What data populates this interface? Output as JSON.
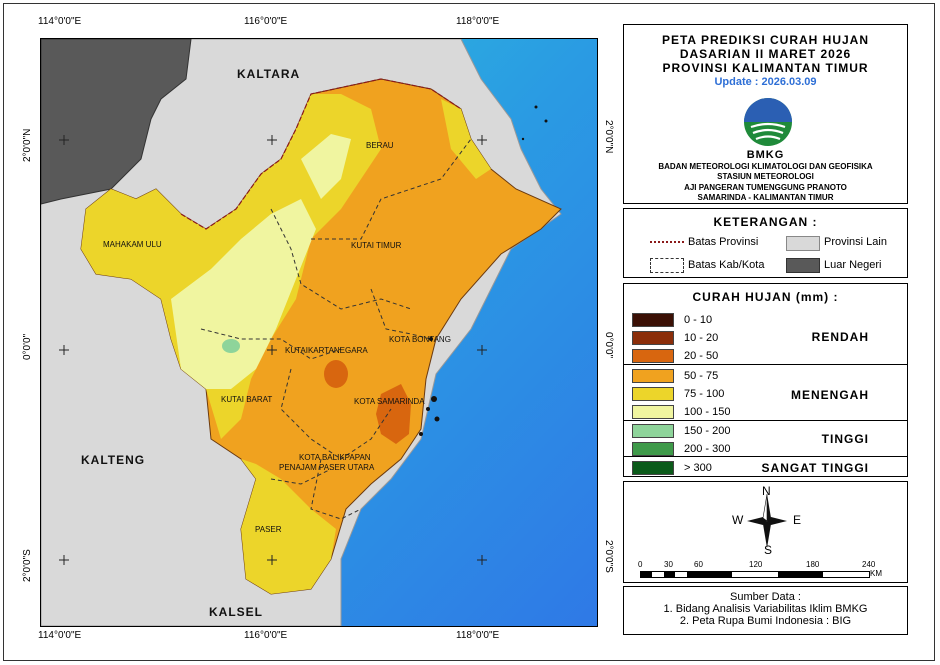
{
  "coordinates": {
    "top": [
      "114°0'0\"E",
      "116°0'0\"E",
      "118°0'0\"E"
    ],
    "bottom": [
      "114°0'0\"E",
      "116°0'0\"E",
      "118°0'0\"E"
    ],
    "left": [
      "2°0'0\"N",
      "0°0'0\"",
      "2°0'0\"S"
    ],
    "right": [
      "2°0'0\"N",
      "0°0'0\"",
      "2°0'0\"S"
    ]
  },
  "map": {
    "neighbors": [
      "KALTARA",
      "KALTENG",
      "KALSEL"
    ],
    "regencies": [
      "BERAU",
      "MAHAKAM ULU",
      "KUTAI TIMUR",
      "KUTAIKARTANEGARA",
      "KOTA BONTANG",
      "KUTAI BARAT",
      "KOTA SAMARINDA",
      "KOTA BALIKPAPAN",
      "PENAJAM PASER UTARA",
      "PASER"
    ]
  },
  "title": {
    "line1": "PETA PREDIKSI CURAH HUJAN",
    "line2": "DASARIAN II MARET 2026",
    "line3": "PROVINSI KALIMANTAN TIMUR",
    "update": "Update : 2026.03.09",
    "logo_text": "BMKG",
    "org1": "BADAN METEOROLOGI KLIMATOLOGI DAN GEOFISIKA",
    "org2": "STASIUN METEOROLOGI",
    "org3": "AJI PANGERAN TUMENGGUNG PRANOTO",
    "org4": "SAMARINDA - KALIMANTAN TIMUR"
  },
  "keterangan": {
    "heading": "KETERANGAN :",
    "batas_provinsi": "Batas Provinsi",
    "batas_kab": "Batas Kab/Kota",
    "provinsi_lain": "Provinsi Lain",
    "luar_negeri": "Luar Negeri"
  },
  "curah_hujan": {
    "heading": "CURAH HUJAN (mm) :",
    "classes": [
      {
        "range": "0 - 10",
        "color": "#3b1005"
      },
      {
        "range": "10 - 20",
        "color": "#8b2e0a"
      },
      {
        "range": "20 - 50",
        "color": "#d8660f"
      },
      {
        "range": "50 - 75",
        "color": "#f0a21f"
      },
      {
        "range": "75 - 100",
        "color": "#ecd52a"
      },
      {
        "range": "100 - 150",
        "color": "#f0f5a0"
      },
      {
        "range": "150 - 200",
        "color": "#8ed49a"
      },
      {
        "range": "200 - 300",
        "color": "#3f9a4a"
      },
      {
        "range": "> 300",
        "color": "#0b5a1a"
      }
    ],
    "categories": [
      "RENDAH",
      "MENENGAH",
      "TINGGI",
      "SANGAT TINGGI"
    ]
  },
  "compass": {
    "n": "N",
    "s": "S",
    "e": "E",
    "w": "W"
  },
  "scale": {
    "ticks": [
      "0",
      "30",
      "60",
      "120",
      "180",
      "240"
    ],
    "unit": "KM"
  },
  "sumber": {
    "heading": "Sumber Data :",
    "item1": "1. Bidang Analisis Variabilitas Iklim BMKG",
    "item2": "2. Peta Rupa Bumi Indonesia : BIG"
  }
}
